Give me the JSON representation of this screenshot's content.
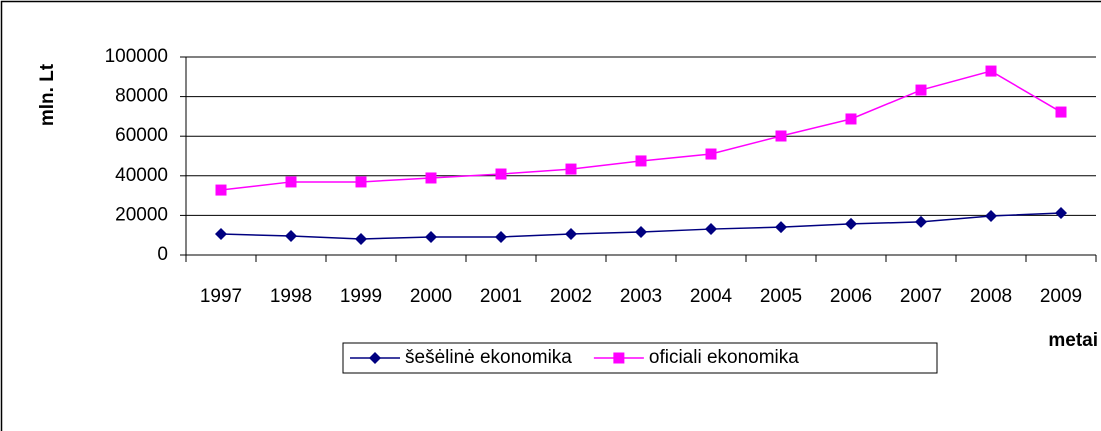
{
  "chart_data": {
    "type": "line",
    "y_label": "mln. Lt",
    "x_label": "metai",
    "categories": [
      "1997",
      "1998",
      "1999",
      "2000",
      "2001",
      "2002",
      "2003",
      "2004",
      "2005",
      "2006",
      "2007",
      "2008",
      "2009"
    ],
    "series": [
      {
        "name": "šešėlinė ekonomika",
        "color": "#000080",
        "marker": "diamond",
        "values": [
          10600,
          9600,
          8100,
          9100,
          9100,
          10600,
          11600,
          13100,
          14100,
          15700,
          16700,
          19700,
          21200
        ]
      },
      {
        "name": "oficiali ekonomika",
        "color": "#ff00ff",
        "marker": "square",
        "values": [
          32800,
          36900,
          36900,
          38900,
          40900,
          43400,
          47500,
          51000,
          60100,
          68700,
          83300,
          92900,
          72200
        ]
      }
    ],
    "ylim": [
      0,
      100000
    ],
    "yticks": [
      0,
      20000,
      40000,
      60000,
      80000,
      100000
    ],
    "grid": true,
    "legend": "bottom"
  }
}
